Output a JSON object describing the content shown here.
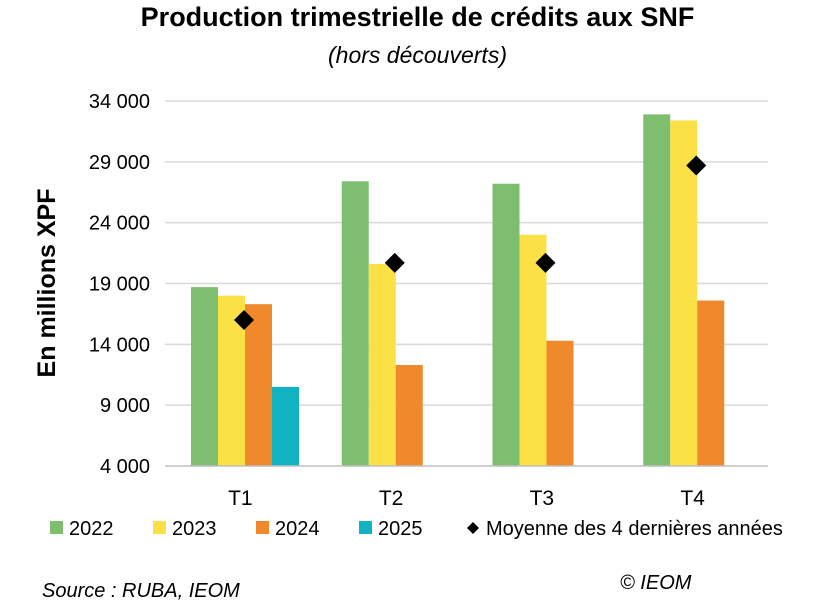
{
  "title": "Production trimestrielle de crédits aux SNF",
  "subtitle": "(hors découverts)",
  "source": "Source : RUBA, IEOM",
  "copyright": "© IEOM",
  "colors": {
    "2022": "#7dbf6e",
    "2023": "#fbe046",
    "2024": "#f0892c",
    "2025": "#11b3c2",
    "average": "#000000",
    "grid": "#d9d9d9",
    "axis": "#bfbfbf"
  },
  "chart_data": {
    "type": "bar",
    "title": "Production trimestrielle de crédits aux SNF",
    "subtitle": "(hors découverts)",
    "xlabel": "",
    "ylabel": "En millions XPF",
    "ylim": [
      4000,
      34000
    ],
    "yticks": [
      4000,
      9000,
      14000,
      19000,
      24000,
      29000,
      34000
    ],
    "ytick_labels": [
      "4 000",
      "9 000",
      "14 000",
      "19 000",
      "24 000",
      "29 000",
      "34 000"
    ],
    "grid": true,
    "legend_position": "bottom",
    "categories": [
      "T1",
      "T2",
      "T3",
      "T4"
    ],
    "series": [
      {
        "name": "2022",
        "values": [
          18700,
          27400,
          27200,
          32900
        ]
      },
      {
        "name": "2023",
        "values": [
          18000,
          20600,
          23000,
          32400
        ]
      },
      {
        "name": "2024",
        "values": [
          17300,
          12300,
          14300,
          17600
        ]
      },
      {
        "name": "2025",
        "values": [
          10500,
          null,
          null,
          null
        ]
      }
    ],
    "markers": {
      "name": "Moyenne des 4 dernières années",
      "values": [
        16000,
        20700,
        20700,
        28700
      ]
    }
  }
}
